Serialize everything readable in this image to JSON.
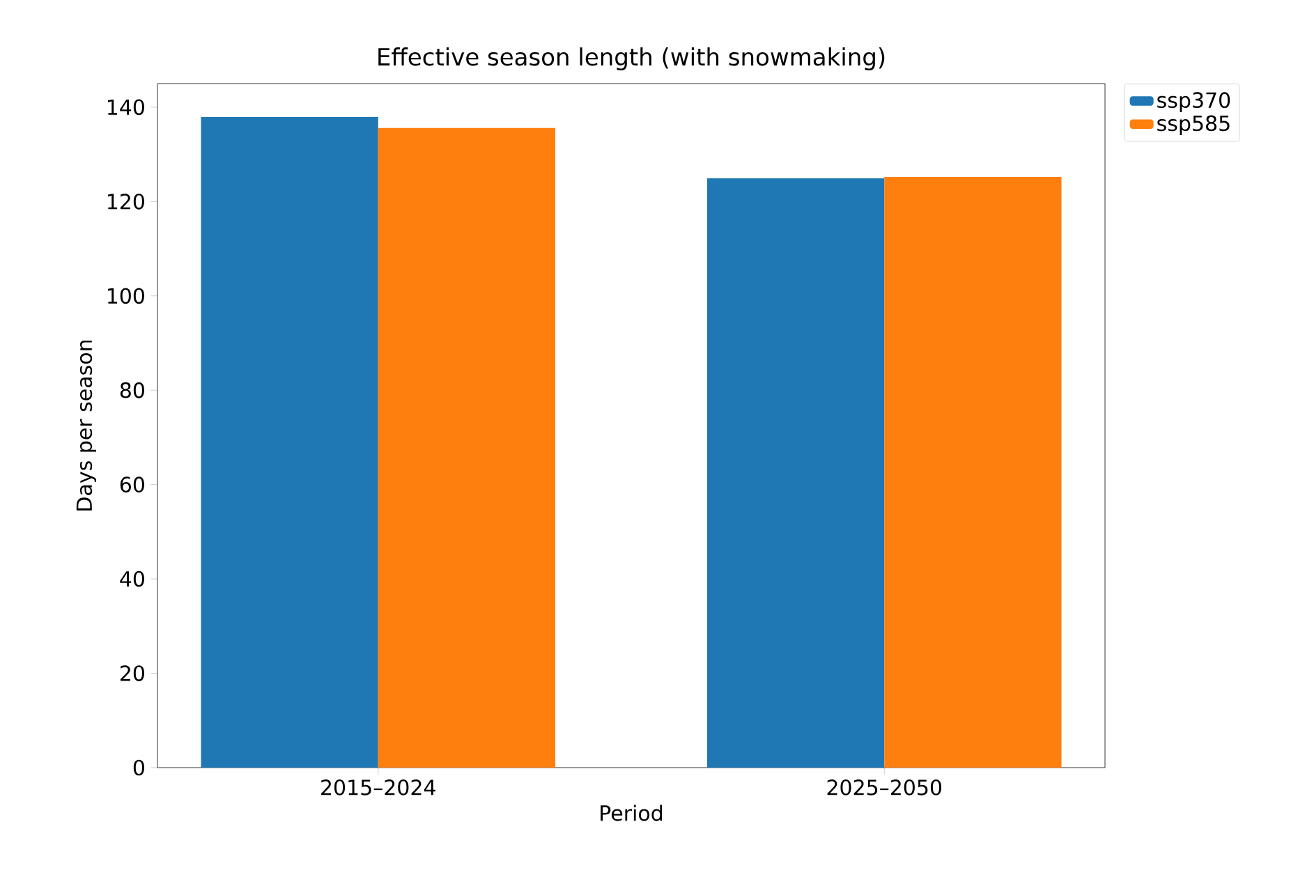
{
  "chart_data": {
    "type": "bar",
    "title": "Effective season length (with snowmaking)",
    "xlabel": "Period",
    "ylabel": "Days per season",
    "categories": [
      "2015–2024",
      "2025–2050"
    ],
    "series": [
      {
        "name": "ssp370",
        "color": "#1f77b4",
        "values": [
          137.9,
          124.9
        ]
      },
      {
        "name": "ssp585",
        "color": "#ff7f0e",
        "values": [
          135.6,
          125.2
        ]
      }
    ],
    "ylim": [
      0,
      145
    ],
    "yticks": [
      0,
      20,
      40,
      60,
      80,
      100,
      120,
      140
    ],
    "legend": "top right"
  }
}
